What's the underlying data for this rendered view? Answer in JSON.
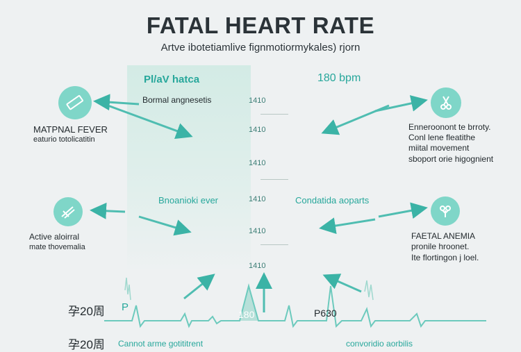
{
  "header": {
    "title": "FATAL HEART RATE",
    "subtitle": "Artve ibotetiamlive fignmotiormykales) rjorn"
  },
  "center_panel": {
    "heading": "Pl/aV hatca",
    "sub": "Bormal angnesetis",
    "bpm": "180 bpm",
    "mid_left": "Bnoanioki ever",
    "mid_right": "Condatida aoparts"
  },
  "scale_labels": [
    "1410",
    "1410",
    "1410",
    "1410",
    "1410",
    "1410"
  ],
  "left_items": [
    {
      "title": "MATPNAL FEVER",
      "desc": "eaturio totolicatitin",
      "icon": "ruler-icon"
    },
    {
      "title": "Active aloirral",
      "desc": "mate thovemalia",
      "icon": "tools-icon"
    }
  ],
  "right_items": [
    {
      "lines": [
        "Enneroonont te brroty.",
        "Conl lene fleatithe",
        "miital movement",
        "sboport orie higognient"
      ],
      "icon": "scissors-icon"
    },
    {
      "title": "FAETAL ANEMIA",
      "lines": [
        "pronile hroonet.",
        "Ite flortingon j loel."
      ],
      "icon": "flower-icon"
    }
  ],
  "bottom": {
    "row1_label": "孕20周",
    "row1_letter": "P",
    "row2_label": "孕20周",
    "peak_label": "180",
    "p_label": "P630",
    "caption_left": "Cannot arme gotititrent",
    "caption_right": "convoridio aorbilis"
  },
  "colors": {
    "accent": "#27a79b",
    "icon_bg": "#7fd6c8",
    "band": "#d3ebe5"
  }
}
